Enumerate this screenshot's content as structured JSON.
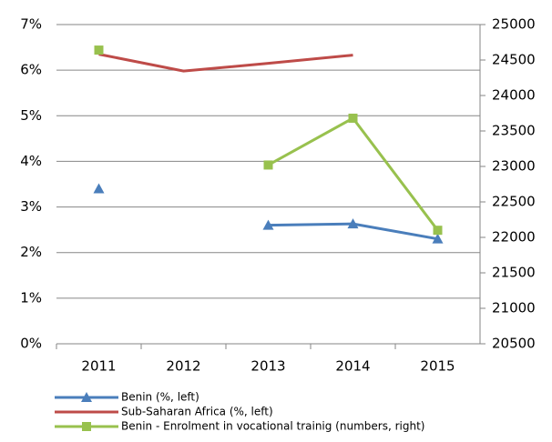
{
  "chart_data": {
    "type": "line",
    "categories": [
      "2011",
      "2012",
      "2013",
      "2014",
      "2015"
    ],
    "series": [
      {
        "name": "Benin (%, left)",
        "color": "#4a7ebb",
        "marker": "triangle",
        "axis": "y",
        "values": [
          3.4,
          null,
          2.6,
          2.63,
          2.3
        ]
      },
      {
        "name": "Sub-Saharan Africa (%, left)",
        "color": "#be4b48",
        "marker": "none",
        "axis": "y",
        "values": [
          6.35,
          5.98,
          6.15,
          6.33,
          null
        ]
      },
      {
        "name": "Benin - Enrolment in vocational trainig (numbers, right)",
        "color": "#98c14e",
        "marker": "square",
        "axis": "y2",
        "values": [
          24640,
          null,
          23020,
          23680,
          22100
        ]
      }
    ],
    "ylim": [
      0,
      7
    ],
    "yticks": [
      {
        "value": 0,
        "label": "0%"
      },
      {
        "value": 1,
        "label": "1%"
      },
      {
        "value": 2,
        "label": "2%"
      },
      {
        "value": 3,
        "label": "3%"
      },
      {
        "value": 4,
        "label": "4%"
      },
      {
        "value": 5,
        "label": "5%"
      },
      {
        "value": 6,
        "label": "6%"
      },
      {
        "value": 7,
        "label": "7%"
      }
    ],
    "y2lim": [
      20500,
      25000
    ],
    "y2ticks": [
      20500,
      21000,
      21500,
      22000,
      22500,
      23000,
      23500,
      24000,
      24500,
      25000
    ],
    "grid": true,
    "legend": "bottom-left"
  }
}
